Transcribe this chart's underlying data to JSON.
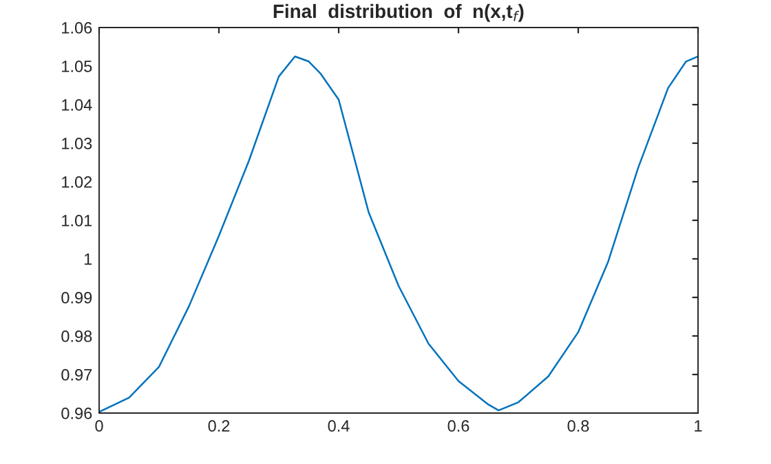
{
  "chart_data": {
    "type": "line",
    "title": "Final  distribution  of  n(x,t$_{f}$)",
    "x": [
      0,
      0.05,
      0.1,
      0.15,
      0.2,
      0.25,
      0.3,
      0.327,
      0.35,
      0.37,
      0.4,
      0.45,
      0.5,
      0.55,
      0.6,
      0.65,
      0.667,
      0.7,
      0.75,
      0.8,
      0.85,
      0.9,
      0.95,
      0.98,
      1
    ],
    "series": [
      {
        "color": "#0072bd",
        "values": [
          0.9603,
          0.964,
          0.972,
          0.9877,
          1.006,
          1.0254,
          1.0473,
          1.0525,
          1.0512,
          1.048,
          1.0413,
          1.0121,
          0.993,
          0.978,
          0.9683,
          0.9622,
          0.9607,
          0.9628,
          0.9695,
          0.981,
          0.9993,
          1.0236,
          1.0443,
          1.0512,
          1.0525
        ]
      }
    ],
    "xlim": [
      0,
      1
    ],
    "ylim": [
      0.96,
      1.06
    ],
    "xticks": [
      0,
      0.2,
      0.4,
      0.6,
      0.8,
      1
    ],
    "yticks": [
      0.96,
      0.97,
      0.98,
      0.99,
      1,
      1.01,
      1.02,
      1.03,
      1.04,
      1.05,
      1.06
    ],
    "grid": false,
    "legend": false
  }
}
